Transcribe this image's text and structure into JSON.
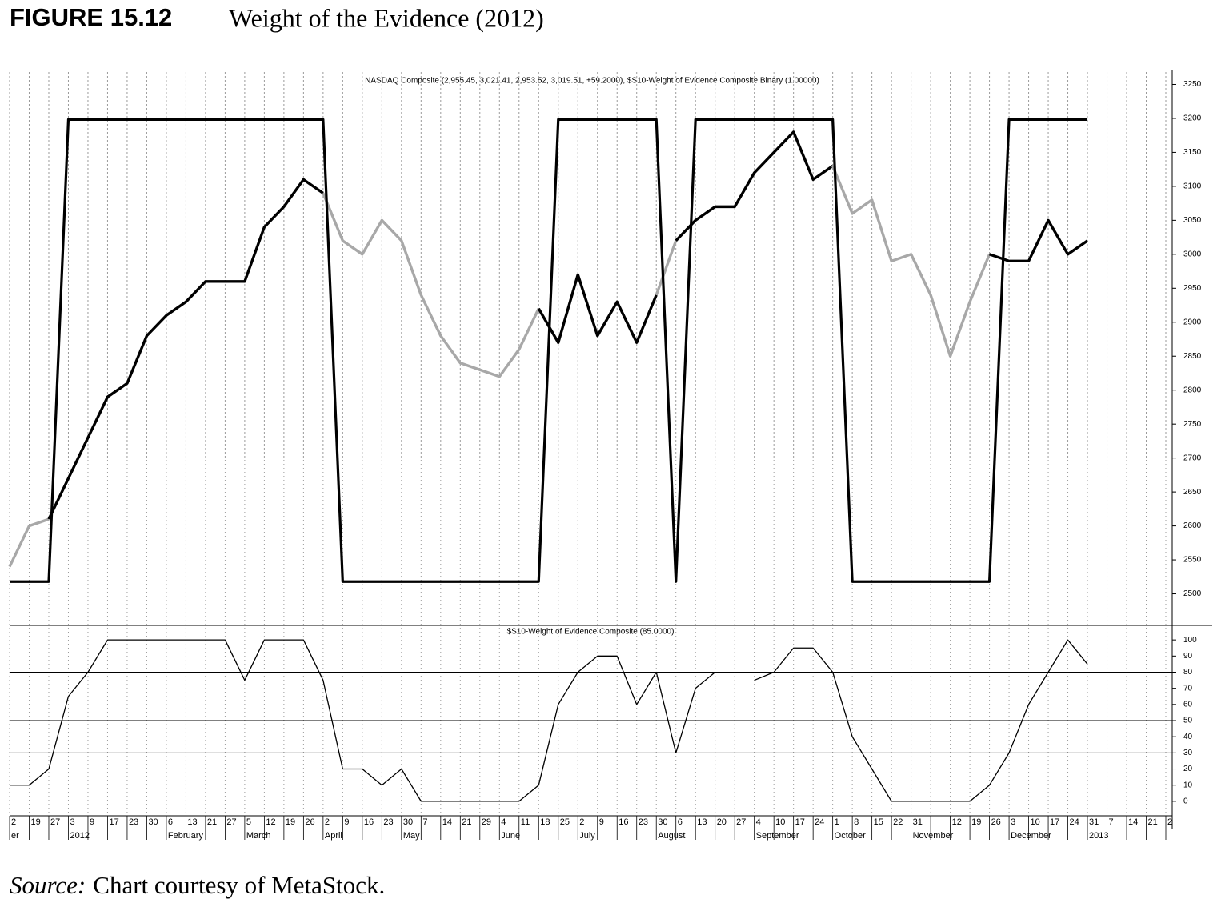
{
  "figure_label": "FIGURE 15.12",
  "title": "Weight of the Evidence (2012)",
  "source_label": "Source:",
  "source_text": "Chart courtesy of MetaStock.",
  "chart_data": [
    {
      "type": "line",
      "title": "NASDAQ Composite (2,955.45, 3,021.41, 2,953.52, 3,019.51, +59.2000), $S10-Weight of Evidence Composite Binary (1.00000)",
      "series": [
        {
          "color": "#000000",
          "inactive_color": "#a8a8a8",
          "values": [
            2540,
            2600,
            2610,
            2670,
            2730,
            2790,
            2810,
            2880,
            2910,
            2930,
            2960,
            2960,
            2960,
            3040,
            3070,
            3110,
            3090,
            3020,
            3000,
            3050,
            3020,
            2940,
            2880,
            2840,
            2830,
            2820,
            2860,
            2920,
            2870,
            2970,
            2880,
            2930,
            2870,
            2940,
            3020,
            3050,
            3070,
            3070,
            3120,
            3150,
            3180,
            3110,
            3130,
            3060,
            3080,
            2990,
            3000,
            2940,
            2850,
            2930,
            3000,
            2990,
            2990,
            3050,
            3000,
            3020,
            null,
            null,
            null,
            null
          ]
        },
        {
          "color": "#000000",
          "axis": "y2",
          "values": [
            0,
            0,
            0,
            1,
            1,
            1,
            1,
            1,
            1,
            1,
            1,
            1,
            1,
            1,
            1,
            1,
            1,
            0,
            0,
            0,
            0,
            0,
            0,
            0,
            0,
            0,
            0,
            0,
            1,
            1,
            1,
            1,
            1,
            1,
            0,
            1,
            1,
            1,
            1,
            1,
            1,
            1,
            1,
            0,
            0,
            0,
            0,
            0,
            0,
            0,
            0,
            1,
            1,
            1,
            1,
            1,
            null,
            null,
            null,
            null
          ]
        }
      ],
      "ylim": [
        2450,
        3280
      ],
      "yticks": [
        2500,
        2550,
        2600,
        2650,
        2700,
        2750,
        2800,
        2850,
        2900,
        2950,
        3000,
        3050,
        3100,
        3150,
        3200,
        3250
      ],
      "y2lim": [
        -0.1,
        1.12
      ],
      "grid": true
    },
    {
      "type": "line",
      "title": "$S10-Weight of Evidence Composite (85.0000)",
      "categories": [
        "2",
        "19",
        "27",
        "3",
        "9",
        "17",
        "23",
        "30",
        "6",
        "13",
        "21",
        "27",
        "5",
        "12",
        "19",
        "26",
        "2",
        "9",
        "16",
        "23",
        "30",
        "7",
        "14",
        "21",
        "29",
        "4",
        "11",
        "18",
        "25",
        "2",
        "9",
        "16",
        "23",
        "30",
        "6",
        "13",
        "20",
        "27",
        "4",
        "10",
        "17",
        "24",
        "1",
        "8",
        "15",
        "22",
        "31",
        null,
        "12",
        "19",
        "26",
        "3",
        "10",
        "17",
        "24",
        "31",
        "7",
        "14",
        "21",
        "2"
      ],
      "month_labels": [
        "er",
        null,
        null,
        "2012",
        null,
        null,
        null,
        null,
        "February",
        null,
        null,
        null,
        "March",
        null,
        null,
        null,
        "April",
        null,
        null,
        null,
        "May",
        null,
        null,
        null,
        null,
        "June",
        null,
        null,
        null,
        "July",
        null,
        null,
        null,
        "August",
        null,
        null,
        null,
        null,
        "September",
        null,
        null,
        null,
        "October",
        null,
        null,
        null,
        "November",
        null,
        null,
        null,
        null,
        "December",
        null,
        null,
        null,
        "2013",
        null,
        null,
        null,
        null
      ],
      "series": [
        {
          "color": "#000000",
          "values": [
            10,
            10,
            20,
            65,
            80,
            100,
            100,
            100,
            100,
            100,
            100,
            100,
            75,
            100,
            100,
            100,
            75,
            20,
            20,
            10,
            20,
            0,
            0,
            0,
            0,
            0,
            0,
            10,
            60,
            80,
            90,
            90,
            60,
            80,
            30,
            70,
            80,
            null,
            75,
            80,
            95,
            95,
            80,
            40,
            20,
            0,
            0,
            0,
            0,
            0,
            10,
            30,
            60,
            80,
            100,
            85,
            null,
            null,
            null,
            null
          ]
        }
      ],
      "ylim": [
        -8,
        109
      ],
      "yticks": [
        0,
        10,
        20,
        30,
        40,
        50,
        60,
        70,
        80,
        90,
        100
      ],
      "hlines": [
        80,
        50,
        30
      ],
      "grid": true
    }
  ]
}
